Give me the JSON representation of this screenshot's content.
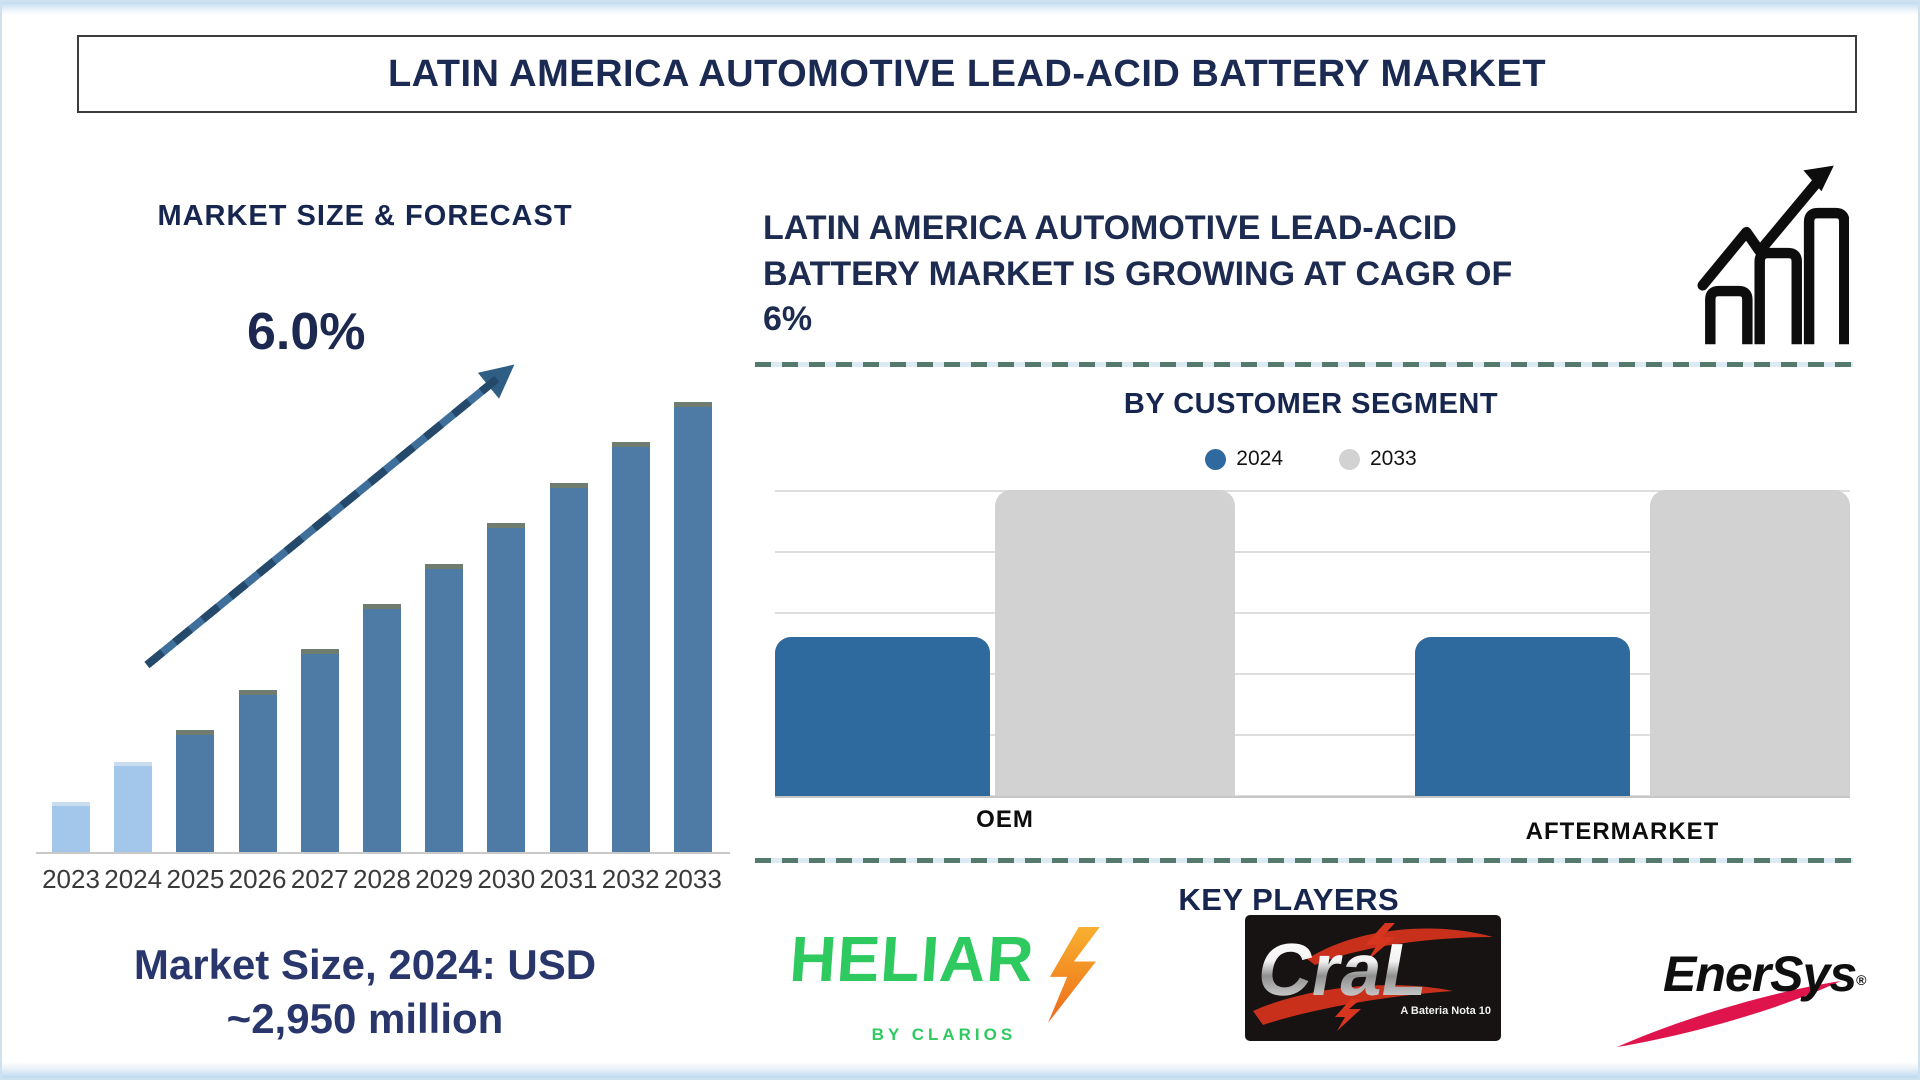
{
  "banner": {
    "title": "LATIN AMERICA AUTOMOTIVE LEAD-ACID BATTERY MARKET"
  },
  "forecast": {
    "heading": "MARKET SIZE & FORECAST",
    "cagr_label": "6.0%",
    "caption_line1": "Market Size, 2024: USD",
    "caption_line2": "~2,950 million"
  },
  "growth": {
    "headline": "LATIN AMERICA AUTOMOTIVE LEAD-ACID BATTERY MARKET IS GROWING AT CAGR OF 6%"
  },
  "segment": {
    "heading": "BY CUSTOMER SEGMENT",
    "legend": [
      {
        "label": "2024",
        "color": "#2e6a9e"
      },
      {
        "label": "2033",
        "color": "#d2d2d2"
      }
    ],
    "categories": [
      "OEM",
      "AFTERMARKET"
    ]
  },
  "players": {
    "heading": "KEY PLAYERS",
    "heliar": {
      "name": "HELIAR",
      "sub": "BY CLARIOS"
    },
    "cral": {
      "name": "CraL",
      "sub": "A Bateria Nota 10"
    },
    "enersys": {
      "name": "EnerSys",
      "reg": "®"
    }
  },
  "colors": {
    "navy": "#1b2a52",
    "bar_light_blue": "#a3c7ea",
    "bar_steel_blue": "#4e7aa6",
    "segment_blue": "#2e6a9e",
    "segment_gray": "#d2d2d2",
    "arrow_blue": "#3a6b94",
    "dash_separator": "#54796d",
    "heliar_green": "#2fca5f",
    "enersys_red": "#e0144c"
  },
  "chart_data": [
    {
      "type": "bar",
      "title": "MARKET SIZE & FORECAST",
      "categories": [
        "2023",
        "2024",
        "2025",
        "2026",
        "2027",
        "2028",
        "2029",
        "2030",
        "2031",
        "2032",
        "2033"
      ],
      "values_relative_height_pct": [
        11,
        20,
        27,
        36,
        45,
        55,
        64,
        73,
        82,
        91,
        100
      ],
      "value_axis": "not shown (stylized infographic, no y-axis ticks)",
      "known_value": {
        "year": "2024",
        "usd_million": 2950
      },
      "cagr_pct": 6.0,
      "annotations": [
        "6.0%",
        "Market Size, 2024: USD ~2,950 million"
      ],
      "grid": "off",
      "legend_position": "none"
    },
    {
      "type": "bar",
      "title": "BY CUSTOMER SEGMENT",
      "categories": [
        "OEM",
        "AFTERMARKET"
      ],
      "series": [
        {
          "name": "2024",
          "values_relative_height_pct": [
            52,
            52
          ]
        },
        {
          "name": "2033",
          "values_relative_height_pct": [
            100,
            100
          ]
        }
      ],
      "value_axis": "not shown (stylized infographic, no y-axis ticks)",
      "grid": "horizontal",
      "legend_position": "top"
    }
  ]
}
